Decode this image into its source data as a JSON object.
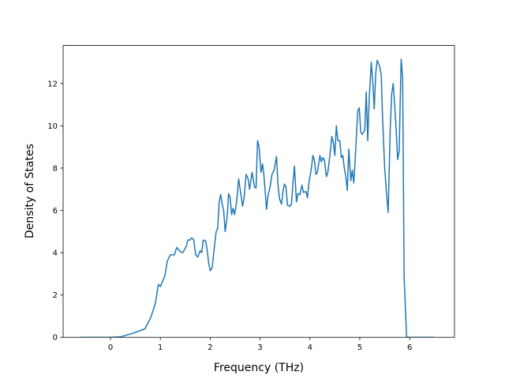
{
  "chart_data": {
    "type": "line",
    "xlabel": "Frequency (THz)",
    "ylabel": "Density of States",
    "color": "#1f77b4",
    "xlim": [
      -0.95,
      6.9
    ],
    "ylim": [
      0,
      13.8
    ],
    "xticks": [
      0,
      1,
      2,
      3,
      4,
      5,
      6
    ],
    "yticks": [
      0,
      2,
      4,
      6,
      8,
      10,
      12
    ],
    "x": [
      -0.6,
      0,
      0.2,
      0.46,
      0.69,
      0.8,
      0.9,
      0.96,
      1.0,
      1.09,
      1.14,
      1.2,
      1.28,
      1.33,
      1.4,
      1.45,
      1.52,
      1.55,
      1.59,
      1.63,
      1.67,
      1.71,
      1.75,
      1.8,
      1.83,
      1.86,
      1.91,
      1.94,
      1.97,
      2.0,
      2.04,
      2.08,
      2.12,
      2.15,
      2.18,
      2.21,
      2.24,
      2.27,
      2.3,
      2.34,
      2.37,
      2.4,
      2.43,
      2.46,
      2.49,
      2.53,
      2.57,
      2.6,
      2.65,
      2.68,
      2.72,
      2.76,
      2.79,
      2.84,
      2.89,
      2.92,
      2.95,
      2.98,
      3.02,
      3.05,
      3.08,
      3.13,
      3.16,
      3.2,
      3.24,
      3.28,
      3.33,
      3.36,
      3.39,
      3.43,
      3.46,
      3.49,
      3.52,
      3.55,
      3.6,
      3.63,
      3.66,
      3.69,
      3.73,
      3.76,
      3.8,
      3.84,
      3.87,
      3.92,
      3.95,
      3.98,
      4.03,
      4.06,
      4.09,
      4.12,
      4.15,
      4.2,
      4.23,
      4.26,
      4.29,
      4.33,
      4.36,
      4.41,
      4.44,
      4.47,
      4.5,
      4.53,
      4.56,
      4.6,
      4.63,
      4.66,
      4.69,
      4.72,
      4.75,
      4.78,
      4.82,
      4.85,
      4.88,
      4.91,
      4.96,
      4.99,
      5.02,
      5.05,
      5.1,
      5.13,
      5.16,
      5.19,
      5.23,
      5.26,
      5.29,
      5.32,
      5.35,
      5.4,
      5.43,
      5.46,
      5.5,
      5.53,
      5.57,
      5.61,
      5.64,
      5.67,
      5.7,
      5.73,
      5.76,
      5.79,
      5.83,
      5.86,
      5.89,
      5.94,
      6.5
    ],
    "values": [
      0,
      0,
      0.02,
      0.2,
      0.4,
      0.9,
      1.6,
      2.5,
      2.4,
      2.9,
      3.6,
      3.9,
      3.9,
      4.25,
      4.05,
      4.0,
      4.3,
      4.6,
      4.6,
      4.7,
      4.6,
      3.9,
      3.8,
      4.1,
      4.0,
      4.6,
      4.55,
      4.1,
      3.5,
      3.15,
      3.3,
      4.2,
      5.0,
      5.15,
      6.4,
      6.75,
      6.3,
      6.0,
      5.0,
      5.7,
      6.8,
      6.6,
      5.8,
      6.1,
      5.8,
      6.4,
      7.5,
      7.0,
      6.2,
      6.6,
      7.7,
      7.5,
      7.0,
      7.8,
      7.1,
      7.05,
      9.3,
      9.0,
      7.8,
      8.2,
      7.6,
      6.05,
      6.7,
      7.1,
      7.7,
      7.9,
      8.55,
      7.2,
      6.55,
      6.3,
      6.9,
      7.25,
      7.1,
      6.25,
      6.2,
      6.3,
      7.3,
      8.1,
      6.4,
      6.8,
      6.75,
      7.2,
      6.85,
      6.9,
      6.6,
      7.3,
      8.0,
      8.6,
      8.4,
      7.7,
      7.8,
      8.6,
      8.3,
      8.5,
      8.4,
      7.6,
      7.8,
      8.8,
      9.5,
      9.2,
      8.6,
      10.0,
      9.3,
      9.3,
      8.5,
      8.6,
      8.0,
      7.6,
      6.95,
      8.9,
      7.4,
      7.9,
      7.3,
      8.5,
      10.7,
      10.85,
      9.7,
      9.6,
      9.8,
      11.6,
      9.3,
      11.3,
      13.0,
      12.1,
      10.8,
      12.5,
      13.1,
      12.8,
      12.4,
      10.2,
      8.0,
      7.0,
      5.9,
      9.8,
      11.5,
      12.0,
      11.0,
      9.8,
      8.4,
      8.8,
      13.15,
      12.3,
      2.8,
      0,
      0
    ]
  }
}
